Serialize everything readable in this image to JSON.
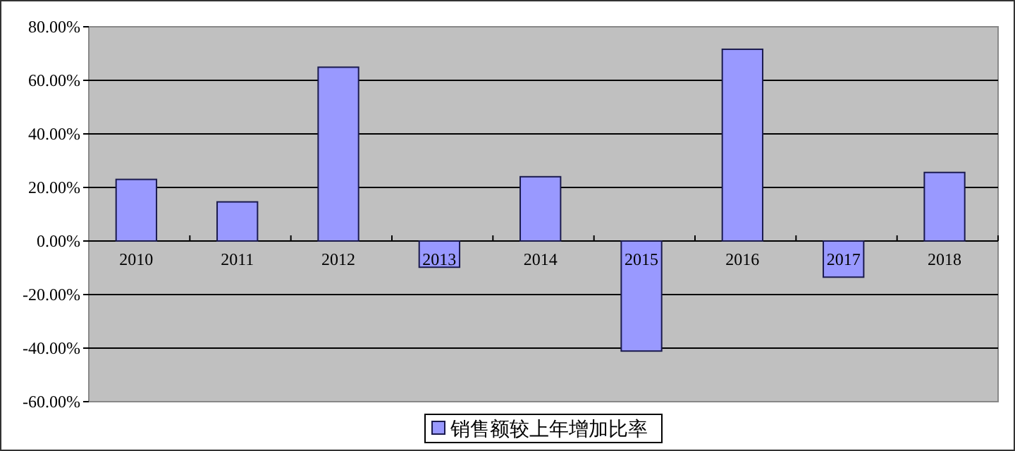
{
  "chart_data": {
    "type": "bar",
    "categories": [
      "2010",
      "2011",
      "2012",
      "2013",
      "2014",
      "2015",
      "2016",
      "2017",
      "2018"
    ],
    "series": [
      {
        "name": "销售额较上年增加比率",
        "color": "#9999ff",
        "values": [
          23.0,
          14.6,
          64.9,
          -9.8,
          24.0,
          -41.1,
          71.6,
          -13.5,
          25.6
        ]
      }
    ],
    "ylim": [
      -60,
      80
    ],
    "yticks": [
      {
        "value": -60,
        "label": "-60.00%"
      },
      {
        "value": -40,
        "label": "-40.00%"
      },
      {
        "value": -20,
        "label": "-20.00%"
      },
      {
        "value": 0,
        "label": "0.00%"
      },
      {
        "value": 20,
        "label": "20.00%"
      },
      {
        "value": 40,
        "label": "40.00%"
      },
      {
        "value": 60,
        "label": "60.00%"
      },
      {
        "value": 80,
        "label": "80.00%"
      }
    ],
    "grid": "y",
    "legend": "bottom"
  }
}
